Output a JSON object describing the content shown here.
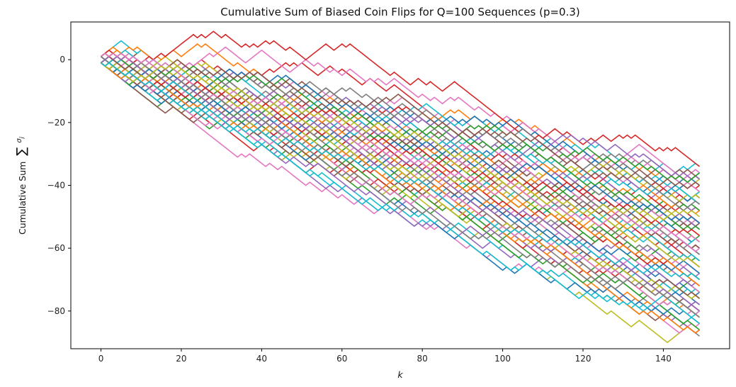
{
  "chart_data": {
    "type": "line",
    "title": "Cumulative Sum of Biased Coin Flips for Q=100 Sequences (p=0.3)",
    "xlabel": "k",
    "ylabel": "Cumulative Sum",
    "ylabel_math": "∑_{j=1}^{k} σ_j",
    "xlim": [
      -7.5,
      156.5
    ],
    "ylim": [
      -92,
      12
    ],
    "xticks": [
      0,
      20,
      40,
      60,
      80,
      100,
      120,
      140
    ],
    "yticks": [
      0,
      -20,
      -40,
      -60,
      -80
    ],
    "x_range": [
      0,
      149
    ],
    "n_series": 100,
    "p": 0.3,
    "step_values": [
      1,
      -1
    ],
    "colors": [
      "#1f77b4",
      "#ff7f0e",
      "#2ca02c",
      "#d62728",
      "#9467bd",
      "#8c564b",
      "#e377c2",
      "#7f7f7f",
      "#bcbd22",
      "#17becf"
    ],
    "series_endpoints": {
      "max_final": -34,
      "min_final": -88,
      "overall_max": 7,
      "overall_min": -88
    },
    "grid": false,
    "legend": "none"
  }
}
